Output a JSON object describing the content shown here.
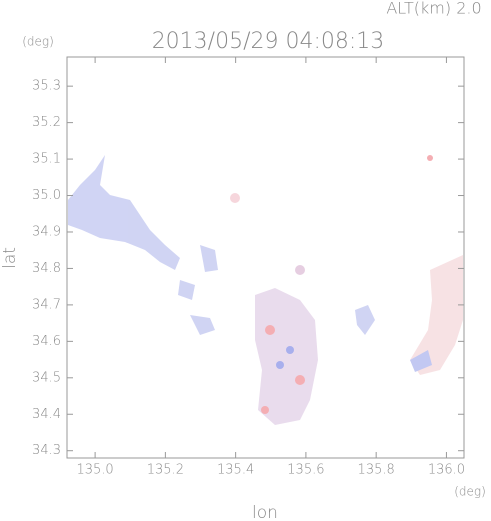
{
  "chart_data": {
    "type": "map",
    "title": "2013/05/29 04:08:13",
    "subtitle": "ALT(km) 2.0",
    "xlabel": "lon",
    "ylabel": "lat",
    "xunit": "(deg)",
    "yunit": "(deg)",
    "xlim": [
      134.92,
      136.05
    ],
    "ylim": [
      34.28,
      35.38
    ],
    "xticks": [
      {
        "value": 135.0,
        "label": "135.0"
      },
      135.2,
      135.4,
      135.6,
      135.8,
      {
        "value": 136.0,
        "label": "136.0"
      }
    ],
    "yticks": [
      34.3,
      34.4,
      34.5,
      34.6,
      34.7,
      34.8,
      34.9,
      {
        "value": 35.0,
        "label": "35.0"
      },
      35.1,
      35.2,
      35.3
    ]
  }
}
